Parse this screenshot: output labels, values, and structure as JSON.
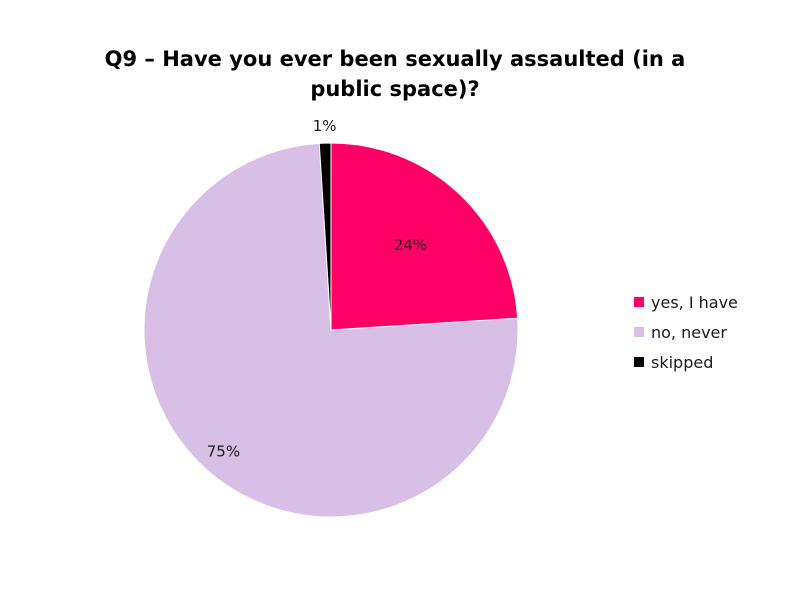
{
  "chart_data": {
    "type": "pie",
    "title": "Q9 – Have you ever been sexually assaulted (in a public space)?",
    "categories": [
      "yes, I have",
      "no, never",
      "skipped"
    ],
    "values": [
      24,
      75,
      1
    ],
    "data_labels": [
      "24%",
      "75%",
      "1%"
    ],
    "colors": [
      "#ff0066",
      "#d8bfe6",
      "#000000"
    ],
    "legend_position": "right",
    "start_angle_deg": 0,
    "direction": "clockwise"
  },
  "legend": {
    "items": [
      {
        "label": "yes, I have",
        "color": "#ff0066"
      },
      {
        "label": "no, never",
        "color": "#d8bfe6"
      },
      {
        "label": "skipped",
        "color": "#000000"
      }
    ]
  }
}
